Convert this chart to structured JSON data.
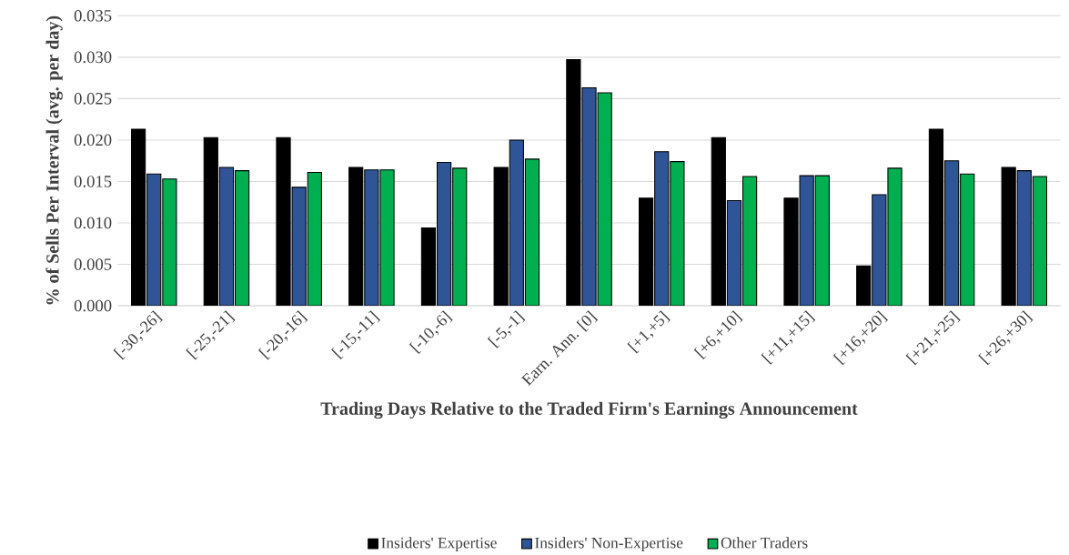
{
  "chart_data": {
    "type": "bar",
    "xlabel": "Trading Days Relative to the Traded Firm's Earnings Announcement",
    "ylabel": "% of Sells Per Interval (avg. per day)",
    "categories": [
      "[-30,-26]",
      "[-25,-21]",
      "[-20,-16]",
      "[-15,-11]",
      "[-10,-6]",
      "[-5,-1]",
      "Earn. Ann. [0]",
      "[+1,+5]",
      "[+6,+10]",
      "[+11,+15]",
      "[+16,+20]",
      "[+21,+25]",
      "[+26,+30]"
    ],
    "series": [
      {
        "name": "Insiders' Expertise",
        "color": "#000000",
        "values": [
          0.0213,
          0.0203,
          0.0203,
          0.0167,
          0.0094,
          0.0167,
          0.0297,
          0.013,
          0.0203,
          0.013,
          0.0048,
          0.0213,
          0.0167
        ]
      },
      {
        "name": "Insiders' Non-Expertise",
        "color": "#2f5597",
        "values": [
          0.0159,
          0.0167,
          0.0143,
          0.0164,
          0.0173,
          0.02,
          0.0263,
          0.0186,
          0.0127,
          0.0157,
          0.0134,
          0.0175,
          0.0163
        ]
      },
      {
        "name": "Other Traders",
        "color": "#00b050",
        "values": [
          0.0153,
          0.0163,
          0.0161,
          0.0164,
          0.0166,
          0.0177,
          0.0257,
          0.0174,
          0.0156,
          0.0157,
          0.0166,
          0.0159,
          0.0156
        ]
      }
    ],
    "ylim": [
      0,
      0.035
    ],
    "yticks": [
      {
        "value": 0,
        "label": "0.000"
      },
      {
        "value": 0.005,
        "label": "0.005"
      },
      {
        "value": 0.01,
        "label": "0.010"
      },
      {
        "value": 0.015,
        "label": "0.015"
      },
      {
        "value": 0.02,
        "label": "0.020"
      },
      {
        "value": 0.025,
        "label": "0.025"
      },
      {
        "value": 0.03,
        "label": "0.030"
      },
      {
        "value": 0.035,
        "label": "0.035"
      }
    ],
    "grid": "y",
    "legend": "bottom"
  }
}
